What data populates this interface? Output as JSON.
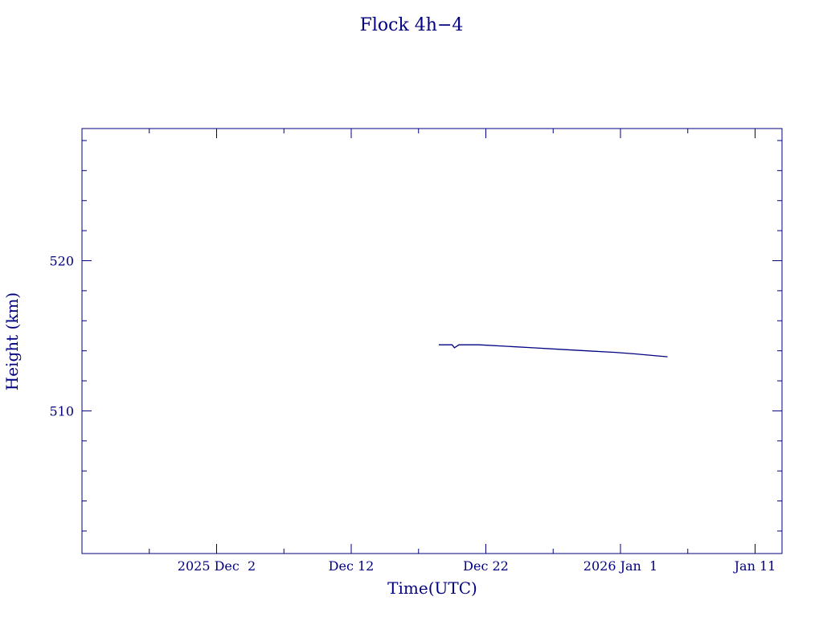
{
  "chart_data": {
    "type": "line",
    "title": "Flock 4h−4",
    "xlabel": "Time(UTC)",
    "ylabel": "Height (km)",
    "x_type": "date",
    "xlim": [
      "2025-11-22",
      "2026-01-13"
    ],
    "ylim": [
      500.5,
      528.8
    ],
    "x_major_ticks": [
      {
        "date": "2025-12-02",
        "label": "2025 Dec  2"
      },
      {
        "date": "2025-12-12",
        "label": "Dec 12"
      },
      {
        "date": "2025-12-22",
        "label": "Dec 22"
      },
      {
        "date": "2026-01-01",
        "label": "2026 Jan  1"
      },
      {
        "date": "2026-01-11",
        "label": "Jan 11"
      }
    ],
    "x_minor_ticks": [
      "2025-11-27",
      "2025-12-07",
      "2025-12-17",
      "2025-12-27",
      "2026-01-06"
    ],
    "y_major_ticks": [
      510,
      520
    ],
    "y_minor_ticks": [
      502,
      504,
      506,
      508,
      512,
      514,
      516,
      518,
      522,
      524,
      526,
      528
    ],
    "grid": false,
    "series": [
      {
        "color": "#000080",
        "x": [
          "2025-12-18T12:00",
          "2025-12-19T12:00",
          "2025-12-19T16:00",
          "2025-12-20T00:00",
          "2025-12-21T12:00",
          "2025-12-23T12:00",
          "2025-12-25T12:00",
          "2025-12-27T12:00",
          "2025-12-29T12:00",
          "2025-12-31T12:00",
          "2026-01-02T00:00",
          "2026-01-04T12:00"
        ],
        "y": [
          514.4,
          514.4,
          514.2,
          514.4,
          514.4,
          514.3,
          514.2,
          514.1,
          514.0,
          513.9,
          513.8,
          513.6
        ]
      }
    ]
  }
}
